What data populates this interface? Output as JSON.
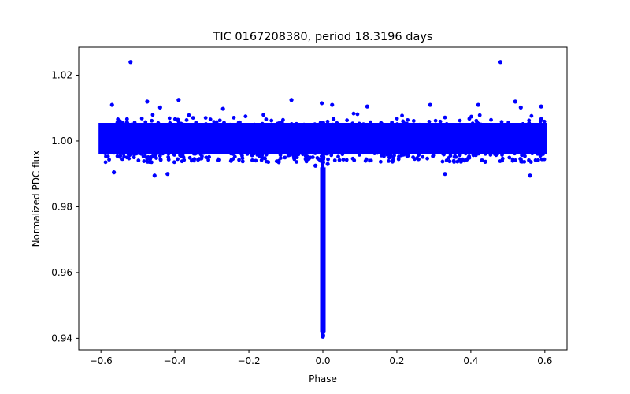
{
  "chart_data": {
    "type": "scatter",
    "title": "TIC 0167208380, period 18.3196 days",
    "xlabel": "Phase",
    "ylabel": "Normalized PDC flux",
    "xlim": [
      -0.66,
      0.66
    ],
    "ylim": [
      0.9365,
      1.0285
    ],
    "xticks": [
      -0.6,
      -0.4,
      -0.2,
      0.0,
      0.2,
      0.4,
      0.6
    ],
    "xtick_labels": [
      "−0.6",
      "−0.4",
      "−0.2",
      "0.0",
      "0.2",
      "0.4",
      "0.6"
    ],
    "yticks": [
      0.94,
      0.96,
      0.98,
      1.0,
      1.02
    ],
    "ytick_labels": [
      "0.94",
      "0.96",
      "0.98",
      "1.00",
      "1.02"
    ],
    "grid": false,
    "legend": "none",
    "series": [
      {
        "name": "PDC flux",
        "color": "#0000ff",
        "baseline": {
          "phase_range": [
            -0.6,
            0.6
          ],
          "flux_center": 1.0,
          "flux_core_range": [
            0.996,
            1.0055
          ],
          "flux_scatter_range": [
            0.9935,
            1.0085
          ]
        },
        "transit": {
          "phase_center": 0.0,
          "half_width": 0.003,
          "min_flux": 0.9405
        },
        "outliers": [
          {
            "x": -0.52,
            "y": 1.024
          },
          {
            "x": 0.48,
            "y": 1.024
          },
          {
            "x": -0.39,
            "y": 1.0125
          },
          {
            "x": -0.085,
            "y": 1.0125
          },
          {
            "x": -0.475,
            "y": 1.012
          },
          {
            "x": 0.52,
            "y": 1.012
          },
          {
            "x": -0.003,
            "y": 1.0115
          },
          {
            "x": 0.025,
            "y": 1.011
          },
          {
            "x": 0.29,
            "y": 1.011
          },
          {
            "x": 0.42,
            "y": 1.011
          },
          {
            "x": -0.57,
            "y": 1.011
          },
          {
            "x": 0.59,
            "y": 1.0105
          },
          {
            "x": 0.12,
            "y": 1.0105
          },
          {
            "x": -0.27,
            "y": 1.0098
          },
          {
            "x": -0.44,
            "y": 1.0102
          },
          {
            "x": 0.535,
            "y": 1.0102
          },
          {
            "x": -0.565,
            "y": 0.9905
          },
          {
            "x": -0.42,
            "y": 0.99
          },
          {
            "x": 0.33,
            "y": 0.99
          },
          {
            "x": 0.56,
            "y": 0.9895
          },
          {
            "x": -0.455,
            "y": 0.9895
          },
          {
            "x": 0.013,
            "y": 0.993
          },
          {
            "x": -0.02,
            "y": 0.9925
          }
        ]
      }
    ]
  }
}
